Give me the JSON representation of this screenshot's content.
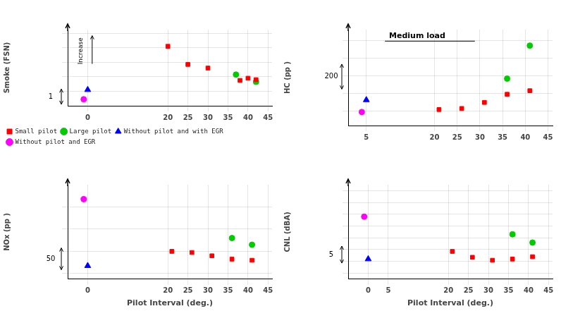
{
  "chart_data": [
    {
      "type": "scatter",
      "y_label": "Smoke (FSN)",
      "xlim": [
        -5,
        46
      ],
      "xticks": [
        0,
        20,
        25,
        30,
        35,
        40,
        45
      ],
      "ylim": [
        0,
        1.05
      ],
      "yticks": [
        0.2,
        0.4,
        0.6,
        0.8,
        1.0
      ],
      "tick_labels": "x",
      "grid": true,
      "legend": "lower left",
      "annotations": [
        "Increase",
        "1"
      ],
      "series": [
        {
          "name": "Small pilot",
          "color": "#ff0000",
          "marker": "square",
          "x": [
            20,
            25,
            30,
            38,
            40,
            42
          ],
          "values": [
            0.82,
            0.57,
            0.52,
            0.35,
            0.38,
            0.36
          ]
        },
        {
          "name": "Large pilot",
          "color": "#00cc00",
          "marker": "circle",
          "x": [
            37,
            42
          ],
          "values": [
            0.43,
            0.33
          ]
        },
        {
          "name": "Without pilot and with EGR",
          "color": "#0000ff",
          "marker": "triangle",
          "x": [
            0
          ],
          "values": [
            0.22
          ]
        },
        {
          "name": "Without pilot and EGR",
          "color": "#ff00ff",
          "marker": "circle",
          "x": [
            -1
          ],
          "values": [
            0.09
          ]
        }
      ]
    },
    {
      "type": "scatter",
      "y_label": "HC (pp )",
      "xlim": [
        1,
        46
      ],
      "xticks": [
        5,
        20,
        25,
        30,
        35,
        40,
        45
      ],
      "ylim": [
        60,
        330
      ],
      "yticks": [
        100,
        150,
        200,
        250,
        300
      ],
      "tick_labels": "x",
      "grid": true,
      "annotations": [
        "200",
        "Medium load"
      ],
      "series": [
        {
          "color": "#ff0000",
          "marker": "square",
          "x": [
            21,
            26,
            31,
            36,
            41
          ],
          "values": [
            105,
            108,
            125,
            148,
            158
          ]
        },
        {
          "color": "#00cc00",
          "marker": "circle",
          "x": [
            36,
            41
          ],
          "values": [
            192,
            285
          ]
        },
        {
          "color": "#0000ff",
          "marker": "triangle",
          "x": [
            5
          ],
          "values": [
            132
          ]
        },
        {
          "color": "#ff00ff",
          "marker": "circle",
          "x": [
            4
          ],
          "values": [
            98
          ]
        }
      ]
    },
    {
      "type": "scatter",
      "y_label": "NOx (pp )",
      "x_label": "Pilot Interval (deg.)",
      "xlim": [
        -5,
        46
      ],
      "xticks": [
        0,
        20,
        25,
        30,
        35,
        40,
        45
      ],
      "ylim": [
        25,
        110
      ],
      "yticks": [
        30,
        50,
        70,
        90
      ],
      "tick_labels": "x",
      "grid": true,
      "annotations": [
        "50"
      ],
      "series": [
        {
          "color": "#ff0000",
          "marker": "square",
          "x": [
            21,
            26,
            31,
            36,
            41
          ],
          "values": [
            50,
            49,
            46,
            43,
            42
          ]
        },
        {
          "color": "#00cc00",
          "marker": "circle",
          "x": [
            36,
            41
          ],
          "values": [
            62,
            56
          ]
        },
        {
          "color": "#0000ff",
          "marker": "triangle",
          "x": [
            0
          ],
          "values": [
            37
          ]
        },
        {
          "color": "#ff00ff",
          "marker": "circle",
          "x": [
            -1
          ],
          "values": [
            97
          ]
        }
      ]
    },
    {
      "type": "scatter",
      "y_label": "CNL (dBA)",
      "x_label": "Pilot Interval (deg.)",
      "xlim": [
        -5,
        46
      ],
      "xticks": [
        0,
        5,
        20,
        25,
        30,
        35,
        40,
        45
      ],
      "ylim": [
        2.5,
        10.5
      ],
      "yticks": [
        3,
        4,
        5,
        6,
        7,
        8,
        9,
        10
      ],
      "tick_labels": "x",
      "grid": true,
      "annotations": [
        "5"
      ],
      "series": [
        {
          "color": "#ff0000",
          "marker": "square",
          "x": [
            21,
            26,
            31,
            36,
            41
          ],
          "values": [
            4.85,
            4.35,
            4.1,
            4.2,
            4.4
          ]
        },
        {
          "color": "#00cc00",
          "marker": "circle",
          "x": [
            36,
            41
          ],
          "values": [
            6.3,
            5.6
          ]
        },
        {
          "color": "#0000ff",
          "marker": "triangle",
          "x": [
            0
          ],
          "values": [
            4.2
          ]
        },
        {
          "color": "#ff00ff",
          "marker": "circle",
          "x": [
            -1
          ],
          "values": [
            7.8
          ]
        }
      ]
    }
  ]
}
